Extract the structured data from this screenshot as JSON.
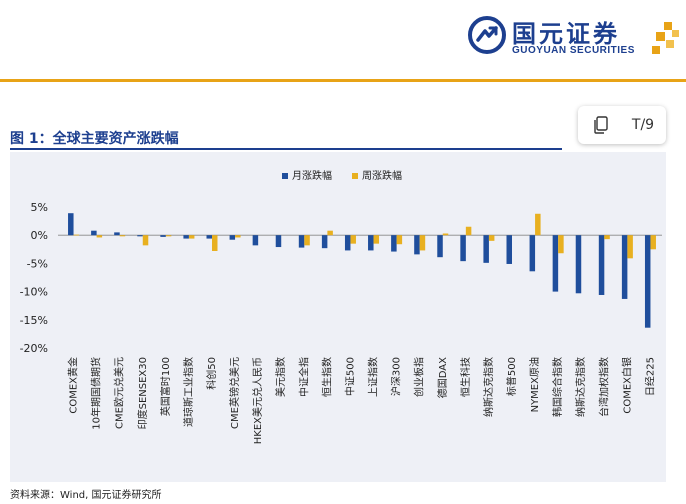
{
  "header": {
    "logo_cn": "国元证券",
    "logo_en": "GUOYUAN SECURITIES",
    "brand_color": "#1d3f8f",
    "accent_color": "#e8a317"
  },
  "figure": {
    "title": "图 1：全球主要资产涨跌幅",
    "source": "资料来源：Wind, 国元证券研究所"
  },
  "toolbar": {
    "copy_icon": "copy-icon",
    "text_label": "T/9"
  },
  "chart_data": {
    "type": "bar",
    "categories": [
      "COMEX黄金",
      "10年期国债期货",
      "CME欧元兑美元",
      "印度SENSEX30",
      "英国富时100",
      "道琼斯工业指数",
      "科创50",
      "CME英镑兑美元",
      "HKEX美元兑人民币",
      "美元指数",
      "中证全指",
      "恒生指数",
      "中证500",
      "上证指数",
      "沪深300",
      "创业板指",
      "德国DAX",
      "恒生科技",
      "纳斯达克指数",
      "标普500",
      "NYMEX原油",
      "韩国综合指数",
      "纳斯达克指数",
      "台湾加权指数",
      "COMEX白银",
      "日经225"
    ],
    "category_labels": [
      "COMEX黄金",
      "10年期国债期货",
      "CME欧元兑美元",
      "印度SENSEX30",
      "英国富时100",
      "道琼斯工业指数",
      "科创50",
      "CME英镑兑美元",
      "HKEX美元兑人民币",
      "美元指数",
      "中证全指",
      "恒生指数",
      "中证500",
      "上证指数",
      "沪深300",
      "创业板指",
      "德国DAX",
      "恒生科技",
      "纳斯达克指数",
      "标普500",
      "NYMEX原油",
      "韩国综合指数",
      "纳斯达克指数",
      "台湾加权指数",
      "COMEX白银",
      "日经225"
    ],
    "series": [
      {
        "name": "月涨跌幅",
        "color": "#1f4e9c",
        "values": [
          3.9,
          0.8,
          0.5,
          -0.2,
          -0.3,
          -0.6,
          -0.6,
          -0.8,
          -1.8,
          -2.1,
          -2.2,
          -2.3,
          -2.7,
          -2.7,
          -2.9,
          -3.4,
          -3.9,
          -4.6,
          -4.9,
          -5.1,
          -6.4,
          -10.0,
          -10.3,
          -10.6,
          -11.3,
          -16.4
        ]
      },
      {
        "name": "周涨跌幅",
        "color": "#e8b020",
        "values": [
          0.1,
          -0.4,
          -0.2,
          -1.8,
          -0.2,
          -0.6,
          -2.8,
          -0.4,
          0.0,
          0.0,
          -1.8,
          0.8,
          -1.5,
          -1.5,
          -1.6,
          -2.7,
          0.3,
          1.5,
          -1.0,
          0.0,
          3.8,
          -3.2,
          0.0,
          -0.7,
          -4.1,
          -2.5
        ]
      }
    ],
    "yticks": [
      5,
      0,
      -5,
      -10,
      -15,
      -20
    ],
    "ytick_labels": [
      "5%",
      "0%",
      "-5%",
      "-10%",
      "-15%",
      "-20%"
    ],
    "ylim": [
      -20,
      5
    ],
    "legend_position": "top-center",
    "grid": false
  }
}
